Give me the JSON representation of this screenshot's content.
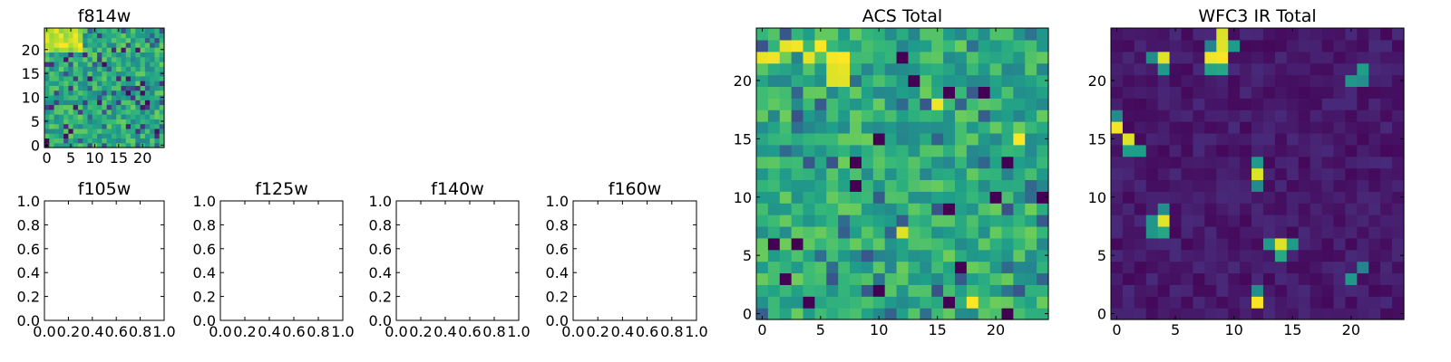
{
  "figure": {
    "panels": [
      {
        "id": "f814w",
        "title": "f814w"
      },
      {
        "id": "f105w",
        "title": "f105w"
      },
      {
        "id": "f125w",
        "title": "f125w"
      },
      {
        "id": "f140w",
        "title": "f140w"
      },
      {
        "id": "f160w",
        "title": "f160w"
      },
      {
        "id": "acs_total",
        "title": "ACS Total"
      },
      {
        "id": "wfc3_total",
        "title": "WFC3 IR Total"
      }
    ]
  },
  "chart_data": [
    {
      "type": "heatmap",
      "title": "f814w",
      "grid_size": [
        25,
        25
      ],
      "xlim": [
        -0.5,
        24.5
      ],
      "ylim": [
        -0.5,
        24.5
      ],
      "xticks": [
        0,
        5,
        10,
        15,
        20
      ],
      "yticks": [
        0,
        5,
        10,
        15,
        20
      ],
      "colormap": "viridis",
      "description": "noise image, brighter yellow patch near top-left"
    },
    {
      "type": "heatmap",
      "title": "f105w",
      "empty": true,
      "xlim": [
        0,
        1
      ],
      "ylim": [
        0,
        1
      ],
      "xticks": [
        "0.0",
        "0.2",
        "0.4",
        "0.6",
        "0.8",
        "1.0"
      ],
      "yticks": [
        "0.0",
        "0.2",
        "0.4",
        "0.6",
        "0.8",
        "1.0"
      ]
    },
    {
      "type": "heatmap",
      "title": "f125w",
      "empty": true,
      "xlim": [
        0,
        1
      ],
      "ylim": [
        0,
        1
      ],
      "xticks": [
        "0.0",
        "0.2",
        "0.4",
        "0.6",
        "0.8",
        "1.0"
      ],
      "yticks": [
        "0.0",
        "0.2",
        "0.4",
        "0.6",
        "0.8",
        "1.0"
      ]
    },
    {
      "type": "heatmap",
      "title": "f140w",
      "empty": true,
      "xlim": [
        0,
        1
      ],
      "ylim": [
        0,
        1
      ],
      "xticks": [
        "0.0",
        "0.2",
        "0.4",
        "0.6",
        "0.8",
        "1.0"
      ],
      "yticks": [
        "0.0",
        "0.2",
        "0.4",
        "0.6",
        "0.8",
        "1.0"
      ]
    },
    {
      "type": "heatmap",
      "title": "f160w",
      "empty": true,
      "xlim": [
        0,
        1
      ],
      "ylim": [
        0,
        1
      ],
      "xticks": [
        "0.0",
        "0.2",
        "0.4",
        "0.6",
        "0.8",
        "1.0"
      ],
      "yticks": [
        "0.0",
        "0.2",
        "0.4",
        "0.6",
        "0.8",
        "1.0"
      ]
    },
    {
      "type": "heatmap",
      "title": "ACS Total",
      "grid_size": [
        25,
        25
      ],
      "xlim": [
        -0.5,
        24.5
      ],
      "ylim": [
        -0.5,
        24.5
      ],
      "xticks": [
        0,
        5,
        10,
        15,
        20
      ],
      "yticks": [
        0,
        5,
        10,
        15,
        20
      ],
      "colormap": "viridis",
      "bright_cells": [
        [
          6,
          22
        ],
        [
          7,
          22
        ],
        [
          6,
          21
        ],
        [
          7,
          21
        ],
        [
          6,
          20
        ],
        [
          7,
          20
        ],
        [
          0,
          22
        ],
        [
          1,
          22
        ],
        [
          2,
          23
        ],
        [
          3,
          23
        ],
        [
          4,
          22
        ],
        [
          5,
          23
        ],
        [
          22,
          15
        ],
        [
          15,
          18
        ],
        [
          12,
          7
        ],
        [
          18,
          1
        ]
      ],
      "dark_cells": [
        [
          12,
          22
        ],
        [
          16,
          19
        ],
        [
          13,
          20
        ],
        [
          8,
          11
        ],
        [
          16,
          9
        ],
        [
          21,
          13
        ],
        [
          24,
          10
        ],
        [
          3,
          6
        ],
        [
          10,
          2
        ],
        [
          21,
          0
        ],
        [
          2,
          3
        ],
        [
          8,
          13
        ],
        [
          10,
          15
        ],
        [
          20,
          10
        ],
        [
          17,
          4
        ],
        [
          4,
          1
        ],
        [
          1,
          6
        ],
        [
          19,
          19
        ],
        [
          16,
          1
        ]
      ]
    },
    {
      "type": "heatmap",
      "title": "WFC3 IR Total",
      "grid_size": [
        25,
        25
      ],
      "xlim": [
        -0.5,
        24.5
      ],
      "ylim": [
        -0.5,
        24.5
      ],
      "xticks": [
        0,
        5,
        10,
        15,
        20
      ],
      "yticks": [
        0,
        5,
        10,
        15,
        20
      ],
      "colormap": "viridis",
      "bright_cells": [
        [
          9,
          24
        ],
        [
          9,
          23
        ],
        [
          9,
          22
        ],
        [
          8,
          22
        ],
        [
          4,
          22
        ],
        [
          0,
          16
        ],
        [
          1,
          15
        ],
        [
          4,
          8
        ],
        [
          12,
          12
        ],
        [
          12,
          1
        ],
        [
          14,
          6
        ]
      ],
      "mid_cells": [
        [
          9,
          21
        ],
        [
          8,
          21
        ],
        [
          3,
          22
        ],
        [
          4,
          21
        ],
        [
          10,
          23
        ],
        [
          8,
          23
        ],
        [
          0,
          17
        ],
        [
          1,
          14
        ],
        [
          2,
          14
        ],
        [
          3,
          8
        ],
        [
          4,
          9
        ],
        [
          3,
          7
        ],
        [
          4,
          7
        ],
        [
          12,
          11
        ],
        [
          12,
          13
        ],
        [
          13,
          6
        ],
        [
          14,
          5
        ],
        [
          15,
          6
        ],
        [
          20,
          20
        ],
        [
          21,
          20
        ],
        [
          21,
          21
        ],
        [
          12,
          2
        ],
        [
          21,
          4
        ],
        [
          20,
          3
        ]
      ]
    }
  ]
}
